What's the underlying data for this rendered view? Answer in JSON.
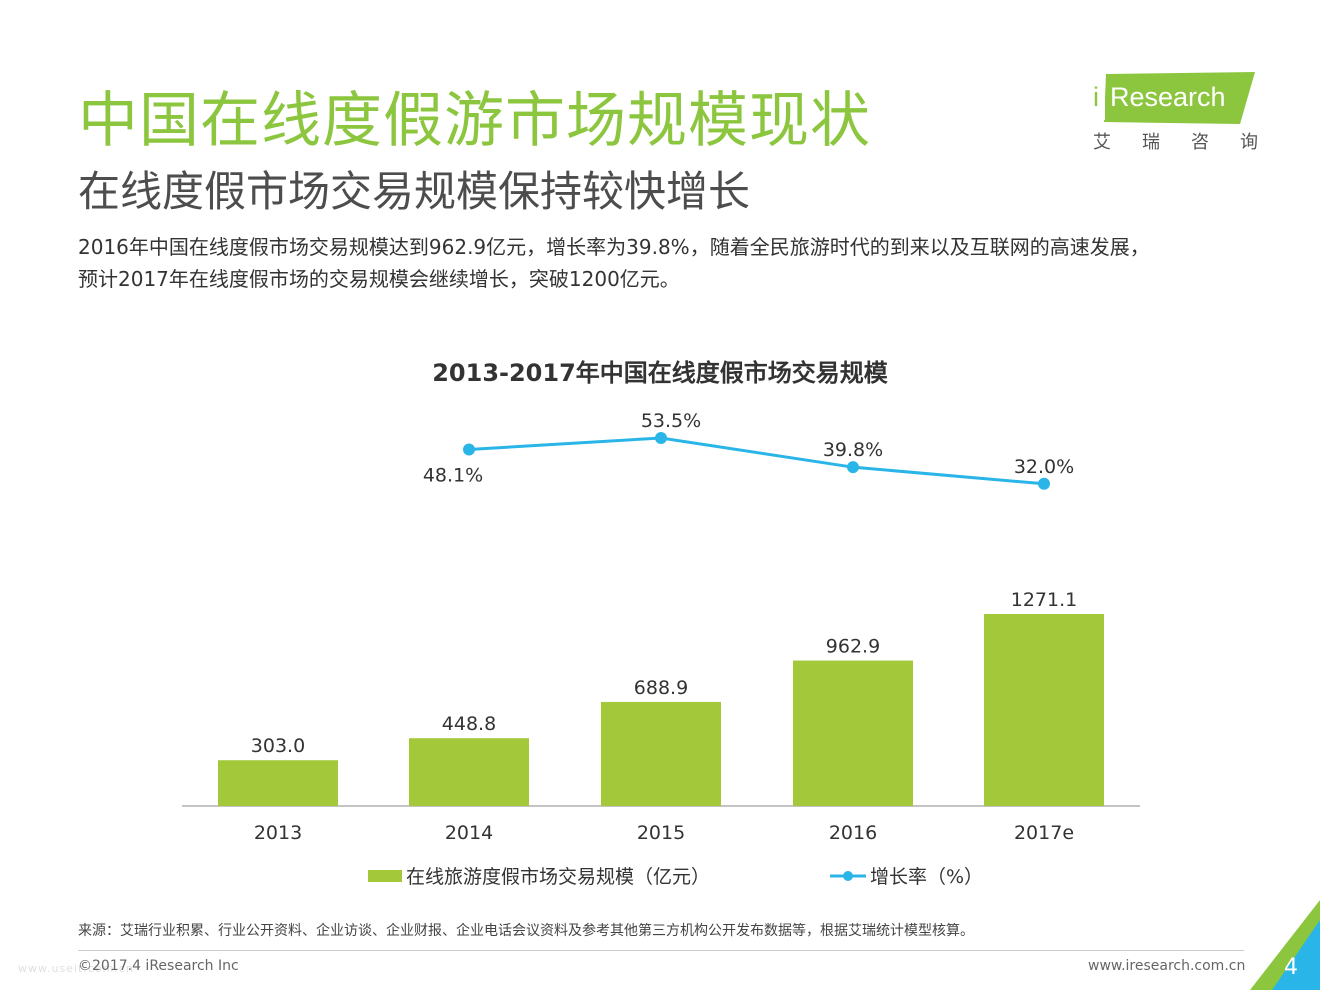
{
  "header": {
    "title": "中国在线度假游市场规模现状",
    "subtitle": "在线度假市场交易规模保持较快增长",
    "summary_line1": "2016年中国在线度假市场交易规模达到962.9亿元，增长率为39.8%，随着全民旅游时代的到来以及互联网的高速发展，",
    "summary_line2": "预计2017年在线度假市场的交易规模会继续增长，突破1200亿元。"
  },
  "logo": {
    "i": "i",
    "text": "Research",
    "cn": [
      "艾",
      "瑞",
      "咨",
      "询"
    ]
  },
  "colors": {
    "title": "#8cc63f",
    "bar": "#a3c93a",
    "line": "#29b5e8",
    "corner_green": "#8cc63f",
    "corner_blue": "#29b5e8"
  },
  "chart_data": {
    "type": "bar+line",
    "title": "2013-2017年中国在线度假市场交易规模",
    "categories": [
      "2013",
      "2014",
      "2015",
      "2016",
      "2017e"
    ],
    "series": [
      {
        "name": "在线旅游度假市场交易规模（亿元）",
        "type": "bar",
        "values": [
          303.0,
          448.8,
          688.9,
          962.9,
          1271.1
        ],
        "labels": [
          "303.0",
          "448.8",
          "688.9",
          "962.9",
          "1271.1"
        ]
      },
      {
        "name": "增长率（%）",
        "type": "line",
        "values": [
          null,
          48.1,
          53.5,
          39.8,
          32.0
        ],
        "labels": [
          "",
          "48.1%",
          "53.5%",
          "39.8%",
          "32.0%"
        ]
      }
    ]
  },
  "footer": {
    "source": "来源：艾瑞行业积累、行业公开资料、企业访谈、企业财报、企业电话会议资料及参考其他第三方机构公开发布数据等，根据艾瑞统计模型核算。",
    "copyright": "©2017.4 iResearch Inc",
    "website": "www.iresearch.com.cn",
    "page_number": "4",
    "watermark": "www.useit.com.cn"
  }
}
